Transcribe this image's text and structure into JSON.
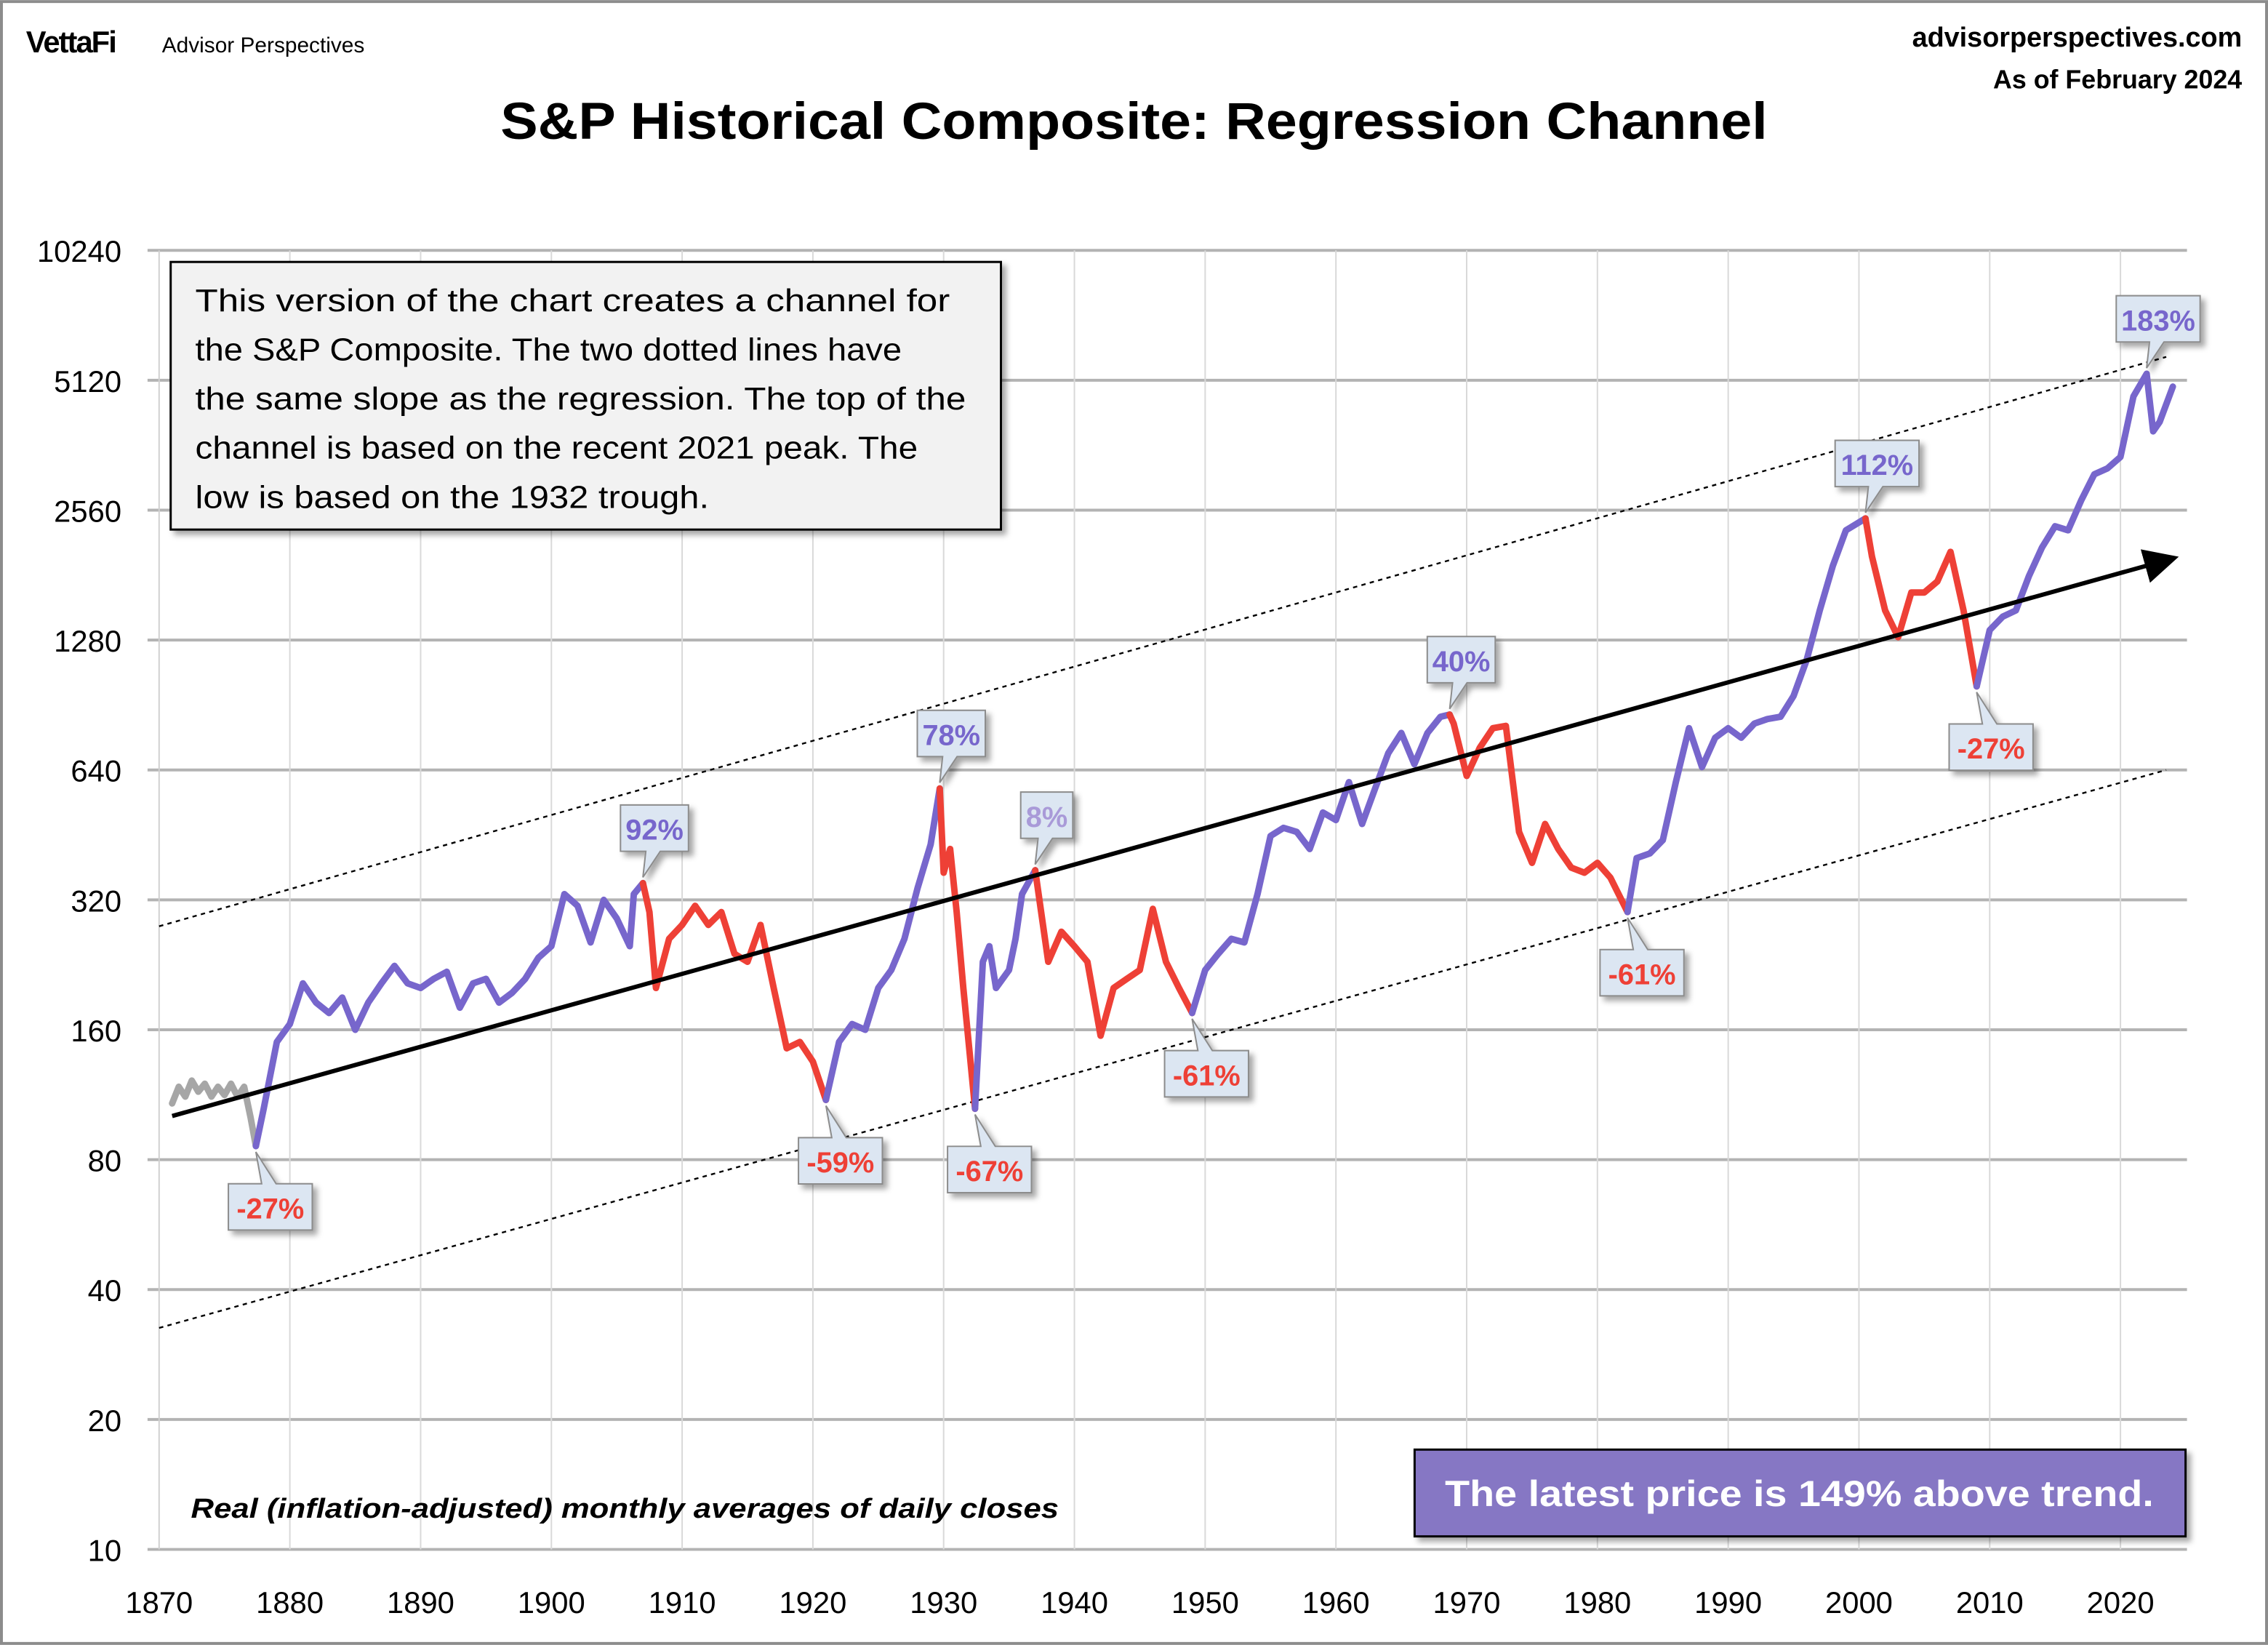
{
  "header": {
    "brand": "VettaFi",
    "brand_sub": "Advisor Perspectives",
    "site": "advisorperspectives.com",
    "as_of": "As of February 2024"
  },
  "colors": {
    "up": "#7766cc",
    "down": "#ee4036",
    "early": "#a6a6a6",
    "trend": "#000000",
    "callout_fill": "#dce6f2",
    "banner": "#8677c4"
  },
  "chart_data": {
    "type": "line",
    "title": "S&P Historical Composite: Regression Channel",
    "xlabel": "",
    "ylabel": "",
    "y_scale": "log2",
    "ylim": [
      10,
      10240
    ],
    "xlim": [
      1870,
      2025
    ],
    "y_ticks": [
      "10240",
      "5120",
      "2560",
      "1280",
      "640",
      "320",
      "160",
      "80",
      "40",
      "20",
      "10"
    ],
    "x_ticks": [
      "1870",
      "1880",
      "1890",
      "1900",
      "1910",
      "1920",
      "1930",
      "1940",
      "1950",
      "1960",
      "1970",
      "1980",
      "1990",
      "2000",
      "2010",
      "2020"
    ],
    "grid": true,
    "segments": [
      {
        "kind": "early",
        "points": [
          [
            1871,
            108
          ],
          [
            1871.5,
            118
          ],
          [
            1872,
            112
          ],
          [
            1872.5,
            122
          ],
          [
            1873,
            115
          ],
          [
            1873.5,
            120
          ],
          [
            1874,
            112
          ],
          [
            1874.5,
            118
          ],
          [
            1875,
            113
          ],
          [
            1875.5,
            120
          ],
          [
            1876,
            112
          ],
          [
            1876.5,
            118
          ],
          [
            1877,
            100
          ],
          [
            1877.4,
            86
          ]
        ]
      },
      {
        "kind": "up",
        "points": [
          [
            1877.4,
            86
          ],
          [
            1878,
            105
          ],
          [
            1879,
            150
          ],
          [
            1880,
            165
          ],
          [
            1881,
            205
          ],
          [
            1882,
            185
          ],
          [
            1883,
            175
          ],
          [
            1884,
            190
          ],
          [
            1885,
            160
          ],
          [
            1886,
            185
          ],
          [
            1887,
            205
          ],
          [
            1888,
            225
          ],
          [
            1889,
            205
          ],
          [
            1890,
            200
          ],
          [
            1891,
            210
          ],
          [
            1892,
            218
          ],
          [
            1893,
            180
          ],
          [
            1894,
            205
          ],
          [
            1895,
            210
          ],
          [
            1896,
            185
          ],
          [
            1897,
            195
          ],
          [
            1898,
            210
          ],
          [
            1899,
            235
          ],
          [
            1900,
            250
          ],
          [
            1901,
            330
          ],
          [
            1902,
            310
          ],
          [
            1903,
            255
          ],
          [
            1904,
            320
          ],
          [
            1905,
            290
          ],
          [
            1906,
            250
          ],
          [
            1906.3,
            330
          ],
          [
            1907,
            350
          ]
        ]
      },
      {
        "kind": "down",
        "points": [
          [
            1907,
            350
          ],
          [
            1907.5,
            300
          ],
          [
            1908,
            200
          ],
          [
            1909,
            260
          ],
          [
            1910,
            280
          ],
          [
            1911,
            310
          ],
          [
            1912,
            280
          ],
          [
            1913,
            300
          ],
          [
            1914,
            240
          ],
          [
            1915,
            230
          ],
          [
            1916,
            280
          ],
          [
            1917,
            200
          ],
          [
            1918,
            145
          ],
          [
            1919,
            150
          ],
          [
            1920,
            135
          ],
          [
            1921,
            110
          ]
        ]
      },
      {
        "kind": "up",
        "points": [
          [
            1921,
            110
          ],
          [
            1922,
            150
          ],
          [
            1923,
            165
          ],
          [
            1924,
            160
          ],
          [
            1925,
            200
          ],
          [
            1926,
            220
          ],
          [
            1927,
            260
          ],
          [
            1928,
            340
          ],
          [
            1929,
            430
          ],
          [
            1929.7,
            580
          ]
        ]
      },
      {
        "kind": "down",
        "points": [
          [
            1929.7,
            580
          ],
          [
            1930,
            370
          ],
          [
            1930.5,
            420
          ],
          [
            1931,
            300
          ],
          [
            1931.5,
            200
          ],
          [
            1932,
            140
          ],
          [
            1932.4,
            105
          ]
        ]
      },
      {
        "kind": "up",
        "points": [
          [
            1932.4,
            105
          ],
          [
            1933,
            230
          ],
          [
            1933.5,
            250
          ],
          [
            1934,
            200
          ],
          [
            1935,
            220
          ],
          [
            1935.5,
            260
          ],
          [
            1936,
            330
          ],
          [
            1937,
            375
          ]
        ]
      },
      {
        "kind": "down",
        "points": [
          [
            1937,
            375
          ],
          [
            1938,
            230
          ],
          [
            1939,
            270
          ],
          [
            1940,
            250
          ],
          [
            1941,
            230
          ],
          [
            1942,
            155
          ],
          [
            1943,
            200
          ],
          [
            1944,
            210
          ],
          [
            1945,
            220
          ],
          [
            1946,
            305
          ],
          [
            1947,
            230
          ],
          [
            1948,
            200
          ],
          [
            1949,
            175
          ]
        ]
      },
      {
        "kind": "up",
        "points": [
          [
            1949,
            175
          ],
          [
            1950,
            220
          ],
          [
            1951,
            240
          ],
          [
            1952,
            260
          ],
          [
            1953,
            255
          ],
          [
            1954,
            330
          ],
          [
            1955,
            450
          ],
          [
            1956,
            470
          ],
          [
            1957,
            460
          ],
          [
            1958,
            420
          ],
          [
            1959,
            510
          ],
          [
            1960,
            490
          ],
          [
            1961,
            600
          ],
          [
            1962,
            480
          ],
          [
            1963,
            580
          ],
          [
            1964,
            700
          ],
          [
            1965,
            780
          ],
          [
            1966,
            660
          ],
          [
            1967,
            780
          ],
          [
            1968,
            850
          ],
          [
            1968.7,
            860
          ]
        ]
      },
      {
        "kind": "down",
        "points": [
          [
            1968.7,
            860
          ],
          [
            1969,
            820
          ],
          [
            1970,
            620
          ],
          [
            1971,
            720
          ],
          [
            1972,
            800
          ],
          [
            1973,
            810
          ],
          [
            1974,
            460
          ],
          [
            1975,
            390
          ],
          [
            1976,
            480
          ],
          [
            1977,
            420
          ],
          [
            1978,
            380
          ],
          [
            1979,
            370
          ],
          [
            1980,
            390
          ],
          [
            1981,
            360
          ],
          [
            1982.3,
            300
          ]
        ]
      },
      {
        "kind": "up",
        "points": [
          [
            1982.3,
            300
          ],
          [
            1983,
            400
          ],
          [
            1984,
            410
          ],
          [
            1985,
            440
          ],
          [
            1986,
            600
          ],
          [
            1987,
            800
          ],
          [
            1988,
            650
          ],
          [
            1989,
            760
          ],
          [
            1990,
            800
          ],
          [
            1991,
            760
          ],
          [
            1992,
            820
          ],
          [
            1993,
            840
          ],
          [
            1994,
            850
          ],
          [
            1995,
            950
          ],
          [
            1996,
            1150
          ],
          [
            1997,
            1500
          ],
          [
            1998,
            1900
          ],
          [
            1999,
            2300
          ],
          [
            2000.5,
            2450
          ]
        ]
      },
      {
        "kind": "down",
        "points": [
          [
            2000.5,
            2450
          ],
          [
            2001,
            2000
          ],
          [
            2002,
            1500
          ],
          [
            2003,
            1300
          ],
          [
            2004,
            1650
          ],
          [
            2005,
            1650
          ],
          [
            2006,
            1750
          ],
          [
            2007,
            2050
          ],
          [
            2008,
            1500
          ],
          [
            2009,
            1000
          ]
        ]
      },
      {
        "kind": "up",
        "points": [
          [
            2009,
            1000
          ],
          [
            2010,
            1350
          ],
          [
            2011,
            1450
          ],
          [
            2012,
            1500
          ],
          [
            2013,
            1800
          ],
          [
            2014,
            2100
          ],
          [
            2015,
            2350
          ],
          [
            2016,
            2300
          ],
          [
            2017,
            2700
          ],
          [
            2018,
            3100
          ],
          [
            2019,
            3200
          ],
          [
            2020,
            3400
          ],
          [
            2021,
            4700
          ],
          [
            2022,
            5300
          ],
          [
            2022.5,
            3900
          ],
          [
            2023,
            4100
          ],
          [
            2024,
            4950
          ]
        ]
      }
    ],
    "trend": {
      "start": [
        1871,
        101
      ],
      "end": [
        2023.5,
        1960
      ]
    },
    "channel_upper": {
      "start": [
        1870,
        278
      ],
      "end": [
        2023.5,
        5800
      ]
    },
    "channel_lower": {
      "start": [
        1870,
        32.6
      ],
      "end": [
        2023.5,
        640
      ]
    },
    "callouts": [
      {
        "label": "-27%",
        "year": 1877.4,
        "value": 86,
        "kind": "down",
        "side": "below"
      },
      {
        "label": "92%",
        "year": 1907,
        "value": 350,
        "kind": "up",
        "side": "above"
      },
      {
        "label": "-59%",
        "year": 1921,
        "value": 110,
        "kind": "down",
        "side": "below"
      },
      {
        "label": "78%",
        "year": 1929.7,
        "value": 580,
        "kind": "up",
        "side": "above"
      },
      {
        "label": "-67%",
        "year": 1932.4,
        "value": 105,
        "kind": "down",
        "side": "below"
      },
      {
        "label": "8%",
        "year": 1937,
        "value": 375,
        "kind": "faint",
        "side": "above"
      },
      {
        "label": "-61%",
        "year": 1949,
        "value": 175,
        "kind": "down",
        "side": "below"
      },
      {
        "label": "40%",
        "year": 1968.7,
        "value": 860,
        "kind": "up",
        "side": "above"
      },
      {
        "label": "-61%",
        "year": 1982.3,
        "value": 300,
        "kind": "down",
        "side": "below"
      },
      {
        "label": "112%",
        "year": 2000.5,
        "value": 2450,
        "kind": "up",
        "side": "above"
      },
      {
        "label": "-27%",
        "year": 2009,
        "value": 1000,
        "kind": "down",
        "side": "below"
      },
      {
        "label": "183%",
        "year": 2022,
        "value": 5300,
        "kind": "up",
        "side": "above"
      }
    ],
    "note_lines": [
      "This version of the chart creates a channel for",
      "the S&P Composite. The two dotted lines have",
      "the same slope as the regression. The top of the",
      "channel is based on the recent 2021 peak. The",
      "low is based on the 1932 trough."
    ],
    "footnote": "Real (inflation-adjusted) monthly averages of daily closes",
    "banner": "The latest price is 149% above trend."
  }
}
